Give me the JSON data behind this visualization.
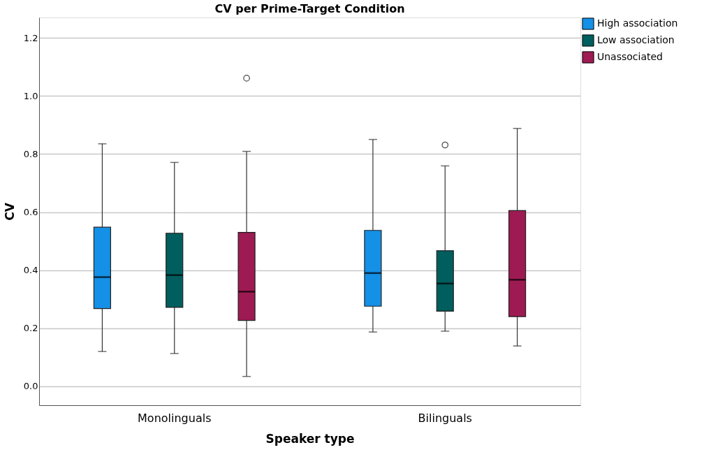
{
  "chart_data": {
    "type": "box",
    "title": "CV per Prime-Target Condition",
    "xlabel": "Speaker type",
    "ylabel": "CV",
    "categories": [
      "Monolinguals",
      "Bilinguals"
    ],
    "series": [
      {
        "name": "High association",
        "color": "#1490e6",
        "boxes": [
          {
            "low": 0.12,
            "q1": 0.268,
            "median": 0.376,
            "q3": 0.548,
            "high": 0.835
          },
          {
            "low": 0.187,
            "q1": 0.276,
            "median": 0.39,
            "q3": 0.537,
            "high": 0.85
          }
        ]
      },
      {
        "name": "Low association",
        "color": "#005e5e",
        "boxes": [
          {
            "low": 0.113,
            "q1": 0.272,
            "median": 0.383,
            "q3": 0.527,
            "high": 0.771
          },
          {
            "low": 0.19,
            "q1": 0.259,
            "median": 0.354,
            "q3": 0.467,
            "high": 0.759,
            "outliers": [
              0.831
            ]
          }
        ]
      },
      {
        "name": "Unassociated",
        "color": "#9e1a52",
        "boxes": [
          {
            "low": 0.034,
            "q1": 0.227,
            "median": 0.326,
            "q3": 0.53,
            "high": 0.809,
            "outliers": [
              1.061
            ]
          },
          {
            "low": 0.139,
            "q1": 0.24,
            "median": 0.367,
            "q3": 0.605,
            "high": 0.888
          }
        ]
      }
    ],
    "ylim": [
      -0.065,
      1.27
    ],
    "yticks": [
      {
        "value": 0,
        "label": "0.0"
      },
      0.2,
      0.4,
      0.6,
      0.8,
      {
        "value": 1,
        "label": "1.0"
      },
      1.2
    ],
    "grid": "y",
    "legend": "top right"
  }
}
